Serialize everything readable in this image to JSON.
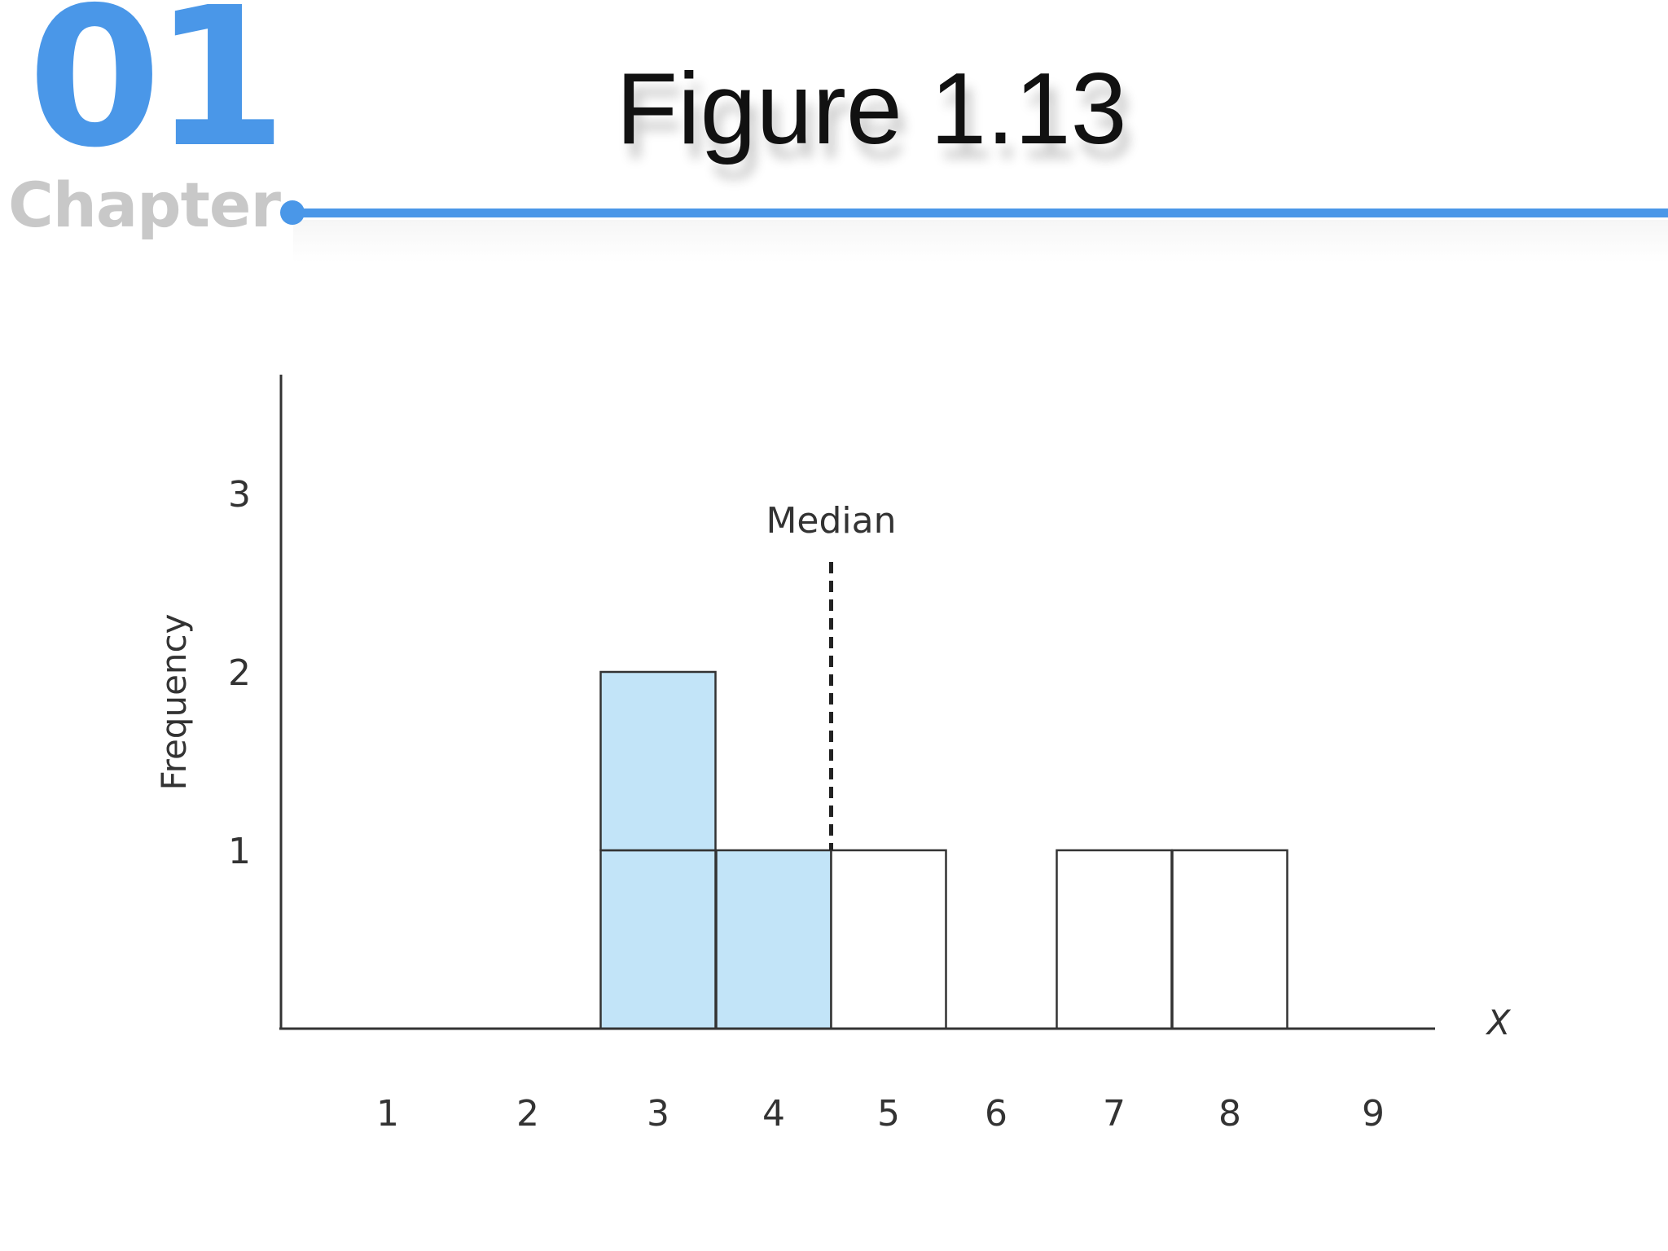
{
  "header": {
    "chapter_number": "01",
    "chapter_label": "Chapter",
    "title": "Figure 1.13"
  },
  "colors": {
    "accent": "#4a97e8",
    "bar_highlight": "#c2e4f8",
    "bar_plain": "#ffffff",
    "outline": "#333333"
  },
  "chart_data": {
    "type": "bar",
    "title": "",
    "xlabel": "X",
    "ylabel": "Frequency",
    "x_ticks": [
      "1",
      "2",
      "3",
      "4",
      "5",
      "6",
      "7",
      "8",
      "9"
    ],
    "y_ticks": [
      "1",
      "2",
      "3"
    ],
    "ylim": [
      0,
      3.6
    ],
    "bars": [
      {
        "x": 3,
        "frequency": 2,
        "highlighted": true
      },
      {
        "x": 4,
        "frequency": 1,
        "highlighted": true
      },
      {
        "x": 5,
        "frequency": 1,
        "highlighted": false
      },
      {
        "x": 7,
        "frequency": 1,
        "highlighted": false
      },
      {
        "x": 8,
        "frequency": 1,
        "highlighted": false
      }
    ],
    "median": {
      "value": 4.5,
      "label": "Median"
    },
    "grid": false,
    "legend": "none"
  }
}
